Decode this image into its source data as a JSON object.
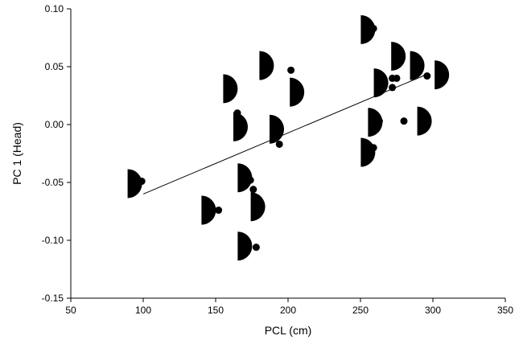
{
  "colors": {
    "background": "#ffffff",
    "ink": "#000000"
  },
  "chart_data": {
    "type": "scatter",
    "xlabel": "PCL (cm)",
    "ylabel": "PC 1 (Head)",
    "xlim": [
      50,
      350
    ],
    "ylim": [
      -0.15,
      0.1
    ],
    "x_ticks": [
      50,
      100,
      150,
      200,
      250,
      300,
      350
    ],
    "y_ticks": [
      -0.15,
      -0.1,
      -0.05,
      0.0,
      0.05,
      0.1
    ],
    "x_tick_labels": [
      "50",
      "100",
      "150",
      "200",
      "250",
      "300",
      "350"
    ],
    "y_tick_labels": [
      "-0.15",
      "-0.10",
      "-0.05",
      "0.00",
      "0.05",
      "0.10"
    ],
    "grid": false,
    "legend": "none",
    "marker": "filled circle",
    "series": [
      {
        "points": [
          {
            "x": 99,
            "y": -0.049
          },
          {
            "x": 152,
            "y": -0.074
          },
          {
            "x": 161,
            "y": 0.025
          },
          {
            "x": 165,
            "y": 0.01
          },
          {
            "x": 174,
            "y": -0.048
          },
          {
            "x": 176,
            "y": -0.056
          },
          {
            "x": 178,
            "y": -0.106
          },
          {
            "x": 187,
            "y": 0.047
          },
          {
            "x": 194,
            "y": -0.017
          },
          {
            "x": 202,
            "y": 0.047
          },
          {
            "x": 259,
            "y": 0.083
          },
          {
            "x": 259,
            "y": -0.02
          },
          {
            "x": 263,
            "y": 0.003
          },
          {
            "x": 272,
            "y": 0.04
          },
          {
            "x": 272,
            "y": 0.032
          },
          {
            "x": 275,
            "y": 0.04
          },
          {
            "x": 280,
            "y": 0.003
          },
          {
            "x": 296,
            "y": 0.042
          }
        ]
      }
    ],
    "trendline": {
      "type": "linear",
      "x": [
        100,
        297
      ],
      "y": [
        -0.06,
        0.044
      ]
    },
    "head_glyphs": [
      {
        "x": 92,
        "y": -0.051
      },
      {
        "x": 143,
        "y": -0.074
      },
      {
        "x": 158,
        "y": 0.031
      },
      {
        "x": 165,
        "y": -0.002
      },
      {
        "x": 168,
        "y": -0.046
      },
      {
        "x": 168,
        "y": -0.105
      },
      {
        "x": 177,
        "y": -0.071
      },
      {
        "x": 183,
        "y": 0.051
      },
      {
        "x": 190,
        "y": -0.004
      },
      {
        "x": 204,
        "y": 0.028
      },
      {
        "x": 253,
        "y": 0.082
      },
      {
        "x": 253,
        "y": -0.024
      },
      {
        "x": 258,
        "y": 0.002
      },
      {
        "x": 262,
        "y": 0.036
      },
      {
        "x": 274,
        "y": 0.059
      },
      {
        "x": 287,
        "y": 0.051
      },
      {
        "x": 292,
        "y": 0.003
      },
      {
        "x": 304,
        "y": 0.043
      }
    ]
  }
}
